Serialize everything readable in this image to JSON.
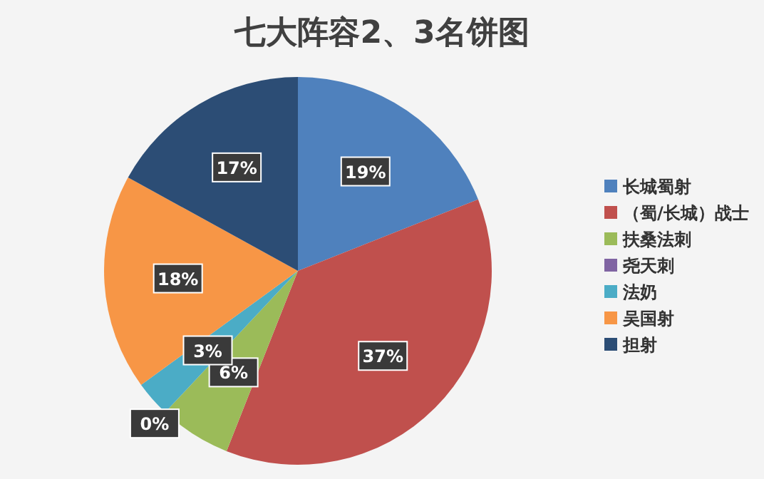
{
  "chart_data": {
    "type": "pie",
    "title": "七大阵容2、3名饼图",
    "categories": [
      "长城蜀射",
      "（蜀/长城）战士",
      "扶桑法刺",
      "尧天刺",
      "法奶",
      "吴国射",
      "担射"
    ],
    "values": [
      19,
      37,
      6,
      0,
      3,
      18,
      17
    ],
    "colors": [
      "#4f81bd",
      "#c0504d",
      "#9bbb59",
      "#8064a2",
      "#4bacc6",
      "#f79646",
      "#2c4d75"
    ],
    "value_labels": [
      "19%",
      "37%",
      "6%",
      "0%",
      "3%",
      "18%",
      "17%"
    ],
    "legend": "right"
  }
}
